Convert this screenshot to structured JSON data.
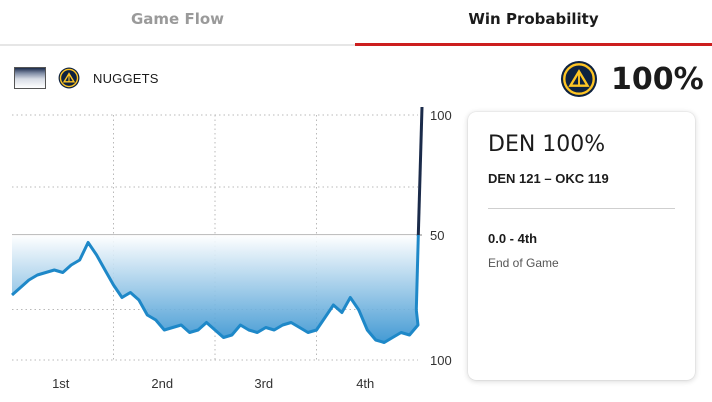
{
  "tabs": [
    {
      "label": "Game Flow",
      "active": false
    },
    {
      "label": "Win Probability",
      "active": true
    }
  ],
  "legend": {
    "team_label": "NUGGETS",
    "icon": "nuggets-logo-icon"
  },
  "summary": {
    "percent": "100%",
    "icon": "nuggets-logo-icon"
  },
  "card": {
    "title": "DEN 100%",
    "score": "DEN 121 – OKC 119",
    "time": "0.0 - 4th",
    "status": "End of Game"
  },
  "colors": {
    "accent_red": "#cc1e1e",
    "line_blue": "#1e88c8",
    "line_dark": "#1b2b4a",
    "fill_blue": "#2f8fcf"
  },
  "chart_data": {
    "type": "area",
    "title": "",
    "xlabel": "",
    "ylabel": "",
    "x_ticks": [
      "1st",
      "2nd",
      "3rd",
      "4th"
    ],
    "y_ticks": [
      "100",
      "50",
      "100"
    ],
    "ylim": [
      0,
      100
    ],
    "grid": true,
    "series": [
      {
        "name": "NUGGETS",
        "x": [
          0,
          1,
          2,
          3,
          4,
          5,
          6,
          7,
          8,
          9,
          10,
          11,
          12,
          13,
          14,
          15,
          16,
          17,
          18,
          19,
          20,
          21,
          22,
          23,
          24,
          25,
          26,
          27,
          28,
          29,
          30,
          31,
          32,
          33,
          34,
          35,
          36,
          37,
          38,
          39,
          40,
          41,
          42,
          43,
          44,
          45,
          46,
          47,
          48,
          47.8,
          48
        ],
        "y": [
          26,
          29,
          32,
          34,
          35,
          36,
          35,
          38,
          40,
          47,
          42,
          36,
          30,
          25,
          27,
          24,
          18,
          16,
          12,
          13,
          14,
          11,
          12,
          15,
          12,
          9,
          10,
          14,
          12,
          11,
          13,
          12,
          14,
          15,
          13,
          11,
          12,
          17,
          22,
          19,
          25,
          20,
          12,
          8,
          7,
          9,
          11,
          10,
          14,
          20,
          100
        ]
      }
    ]
  }
}
